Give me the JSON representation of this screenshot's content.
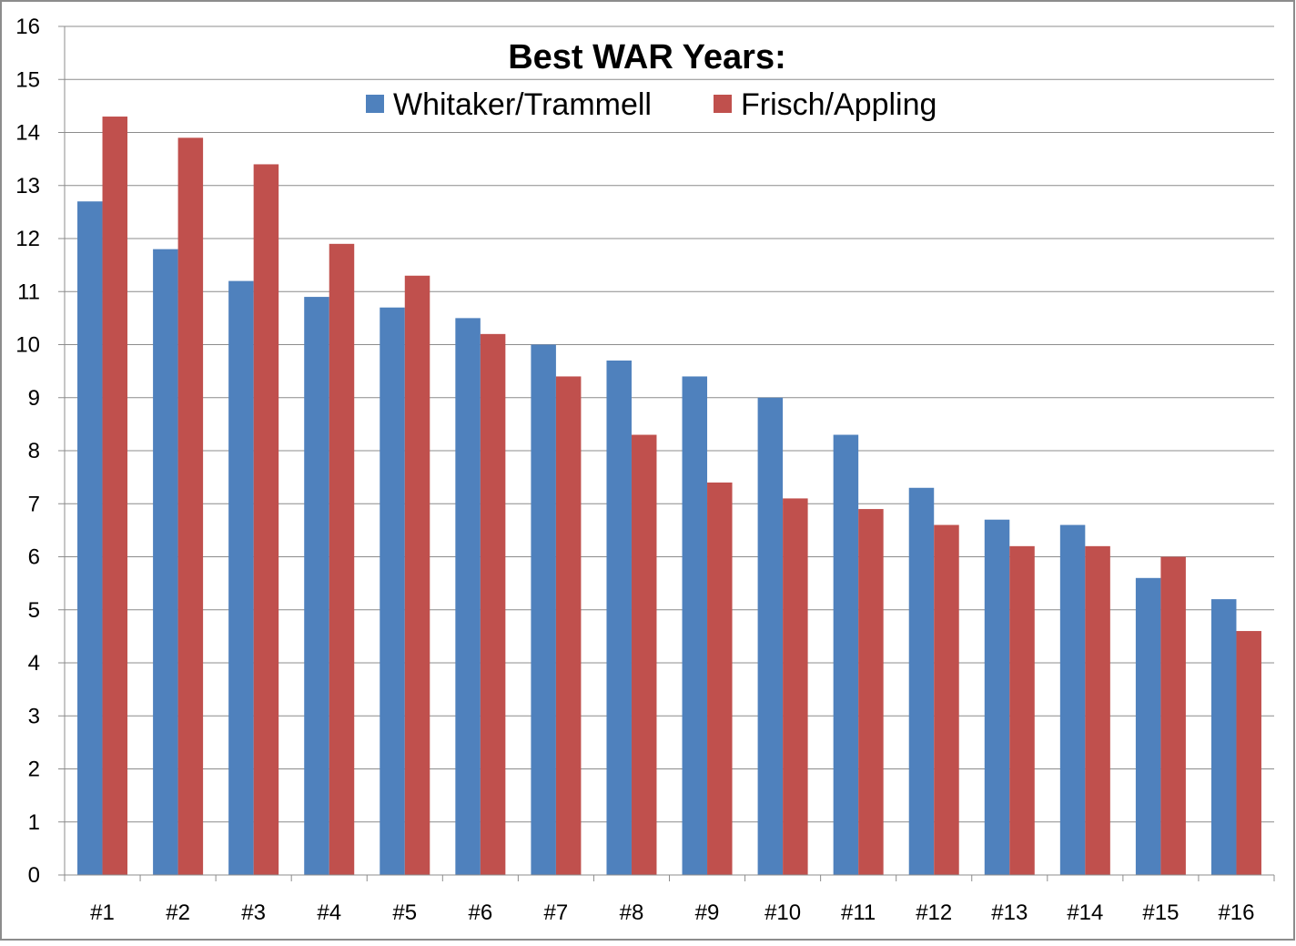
{
  "chart_data": {
    "type": "bar",
    "title": "Best WAR Years:",
    "xlabel": "",
    "ylabel": "",
    "categories": [
      "#1",
      "#2",
      "#3",
      "#4",
      "#5",
      "#6",
      "#7",
      "#8",
      "#9",
      "#10",
      "#11",
      "#12",
      "#13",
      "#14",
      "#15",
      "#16"
    ],
    "series": [
      {
        "name": "Whitaker/Trammell",
        "color": "#4f81bd",
        "values": [
          12.7,
          11.8,
          11.2,
          10.9,
          10.7,
          10.5,
          10.0,
          9.7,
          9.4,
          9.0,
          8.3,
          7.3,
          6.7,
          6.6,
          5.6,
          5.2
        ]
      },
      {
        "name": "Frisch/Appling",
        "color": "#c0504d",
        "values": [
          14.3,
          13.9,
          13.4,
          11.9,
          11.3,
          10.2,
          9.4,
          8.3,
          7.4,
          7.1,
          6.9,
          6.6,
          6.2,
          6.2,
          6.0,
          4.6
        ]
      }
    ],
    "ylim": [
      0,
      16
    ],
    "yticks": [
      0,
      1,
      2,
      3,
      4,
      5,
      6,
      7,
      8,
      9,
      10,
      11,
      12,
      13,
      14,
      15,
      16
    ],
    "grid": true,
    "legend": "top-center"
  }
}
